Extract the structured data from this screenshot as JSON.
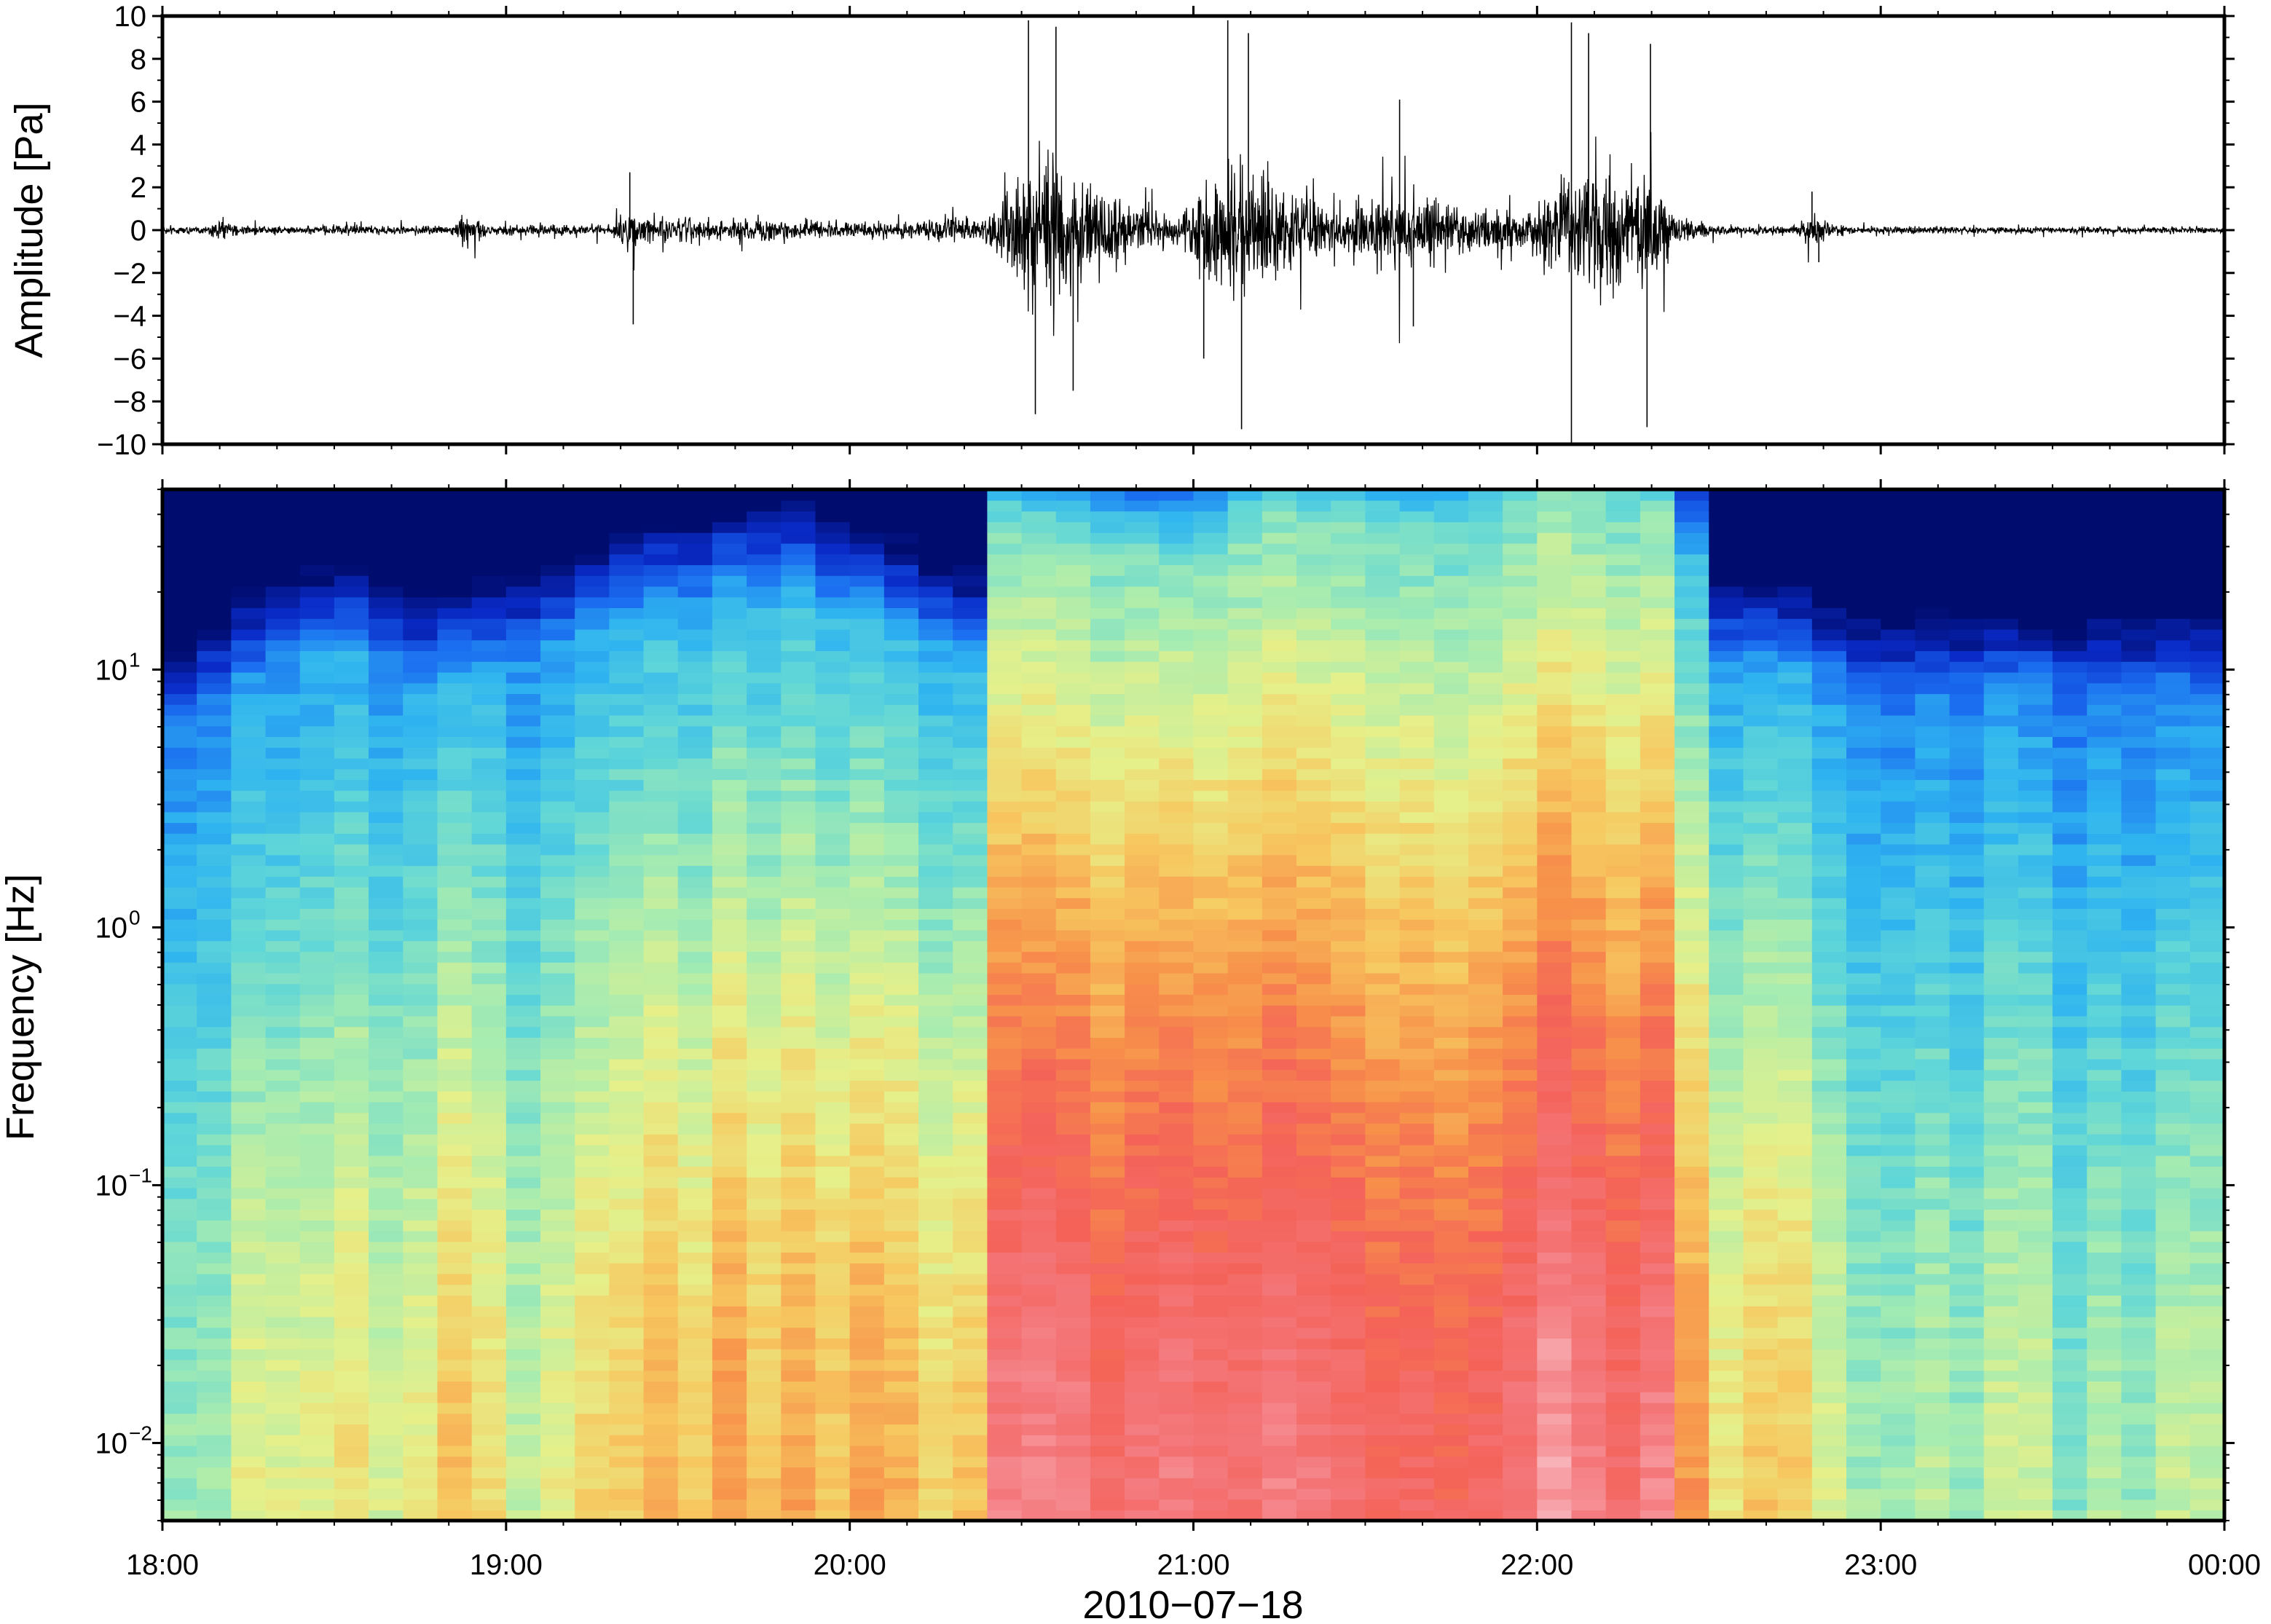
{
  "colors": {
    "trace": "#000000",
    "frame": "#000000",
    "background": "#ffffff",
    "spectrogram_colormap": [
      "#000c6e",
      "#0a2bc8",
      "#1b6ef0",
      "#2fb4f0",
      "#5fd6d8",
      "#a8ecb0",
      "#e6f08a",
      "#f7c860",
      "#f7914a",
      "#f46258",
      "#f4787c",
      "#f8b0b6",
      "#fde2e4"
    ]
  },
  "chart_data": [
    {
      "type": "line",
      "name": "waveform",
      "ylabel": "Amplitude [Pa]",
      "ylim": [
        -10,
        10
      ],
      "yticks": [
        {
          "value": 10,
          "label": "10"
        },
        {
          "value": 8,
          "label": "8"
        },
        {
          "value": 6,
          "label": "6"
        },
        {
          "value": 4,
          "label": "4"
        },
        {
          "value": 2,
          "label": "2"
        },
        {
          "value": 0,
          "label": "0"
        },
        {
          "value": -2,
          "label": "−2"
        },
        {
          "value": -4,
          "label": "−4"
        },
        {
          "value": -6,
          "label": "−6"
        },
        {
          "value": -8,
          "label": "−8"
        },
        {
          "value": -10,
          "label": "−10"
        }
      ],
      "x_start": "18:00",
      "x_end": "00:00",
      "x_unit": "hours",
      "grid": false,
      "envelope": [
        {
          "t": 18.0,
          "amp": 0.25
        },
        {
          "t": 18.12,
          "amp": 0.25
        },
        {
          "t": 18.15,
          "amp": 0.6
        },
        {
          "t": 18.3,
          "amp": 0.25
        },
        {
          "t": 18.5,
          "amp": 0.3
        },
        {
          "t": 18.85,
          "amp": 0.3
        },
        {
          "t": 18.88,
          "amp": 1.2
        },
        {
          "t": 18.95,
          "amp": 0.3
        },
        {
          "t": 19.1,
          "amp": 0.4
        },
        {
          "t": 19.3,
          "amp": 0.3
        },
        {
          "t": 19.35,
          "amp": 1.2
        },
        {
          "t": 19.45,
          "amp": 0.9
        },
        {
          "t": 19.6,
          "amp": 0.6
        },
        {
          "t": 19.8,
          "amp": 0.7
        },
        {
          "t": 20.0,
          "amp": 0.5
        },
        {
          "t": 20.2,
          "amp": 0.6
        },
        {
          "t": 20.3,
          "amp": 1.0
        },
        {
          "t": 20.38,
          "amp": 0.5
        },
        {
          "t": 20.45,
          "amp": 2.5
        },
        {
          "t": 20.52,
          "amp": 5.0
        },
        {
          "t": 20.62,
          "amp": 4.0
        },
        {
          "t": 20.72,
          "amp": 2.5
        },
        {
          "t": 20.95,
          "amp": 1.0
        },
        {
          "t": 21.05,
          "amp": 3.5
        },
        {
          "t": 21.15,
          "amp": 4.5
        },
        {
          "t": 21.3,
          "amp": 2.5
        },
        {
          "t": 21.45,
          "amp": 1.3
        },
        {
          "t": 21.6,
          "amp": 2.8
        },
        {
          "t": 21.75,
          "amp": 1.5
        },
        {
          "t": 21.95,
          "amp": 1.2
        },
        {
          "t": 22.05,
          "amp": 3.0
        },
        {
          "t": 22.2,
          "amp": 5.0
        },
        {
          "t": 22.35,
          "amp": 3.5
        },
        {
          "t": 22.42,
          "amp": 0.8
        },
        {
          "t": 22.55,
          "amp": 0.3
        },
        {
          "t": 22.75,
          "amp": 0.3
        },
        {
          "t": 22.8,
          "amp": 1.0
        },
        {
          "t": 22.9,
          "amp": 0.25
        },
        {
          "t": 24.0,
          "amp": 0.2
        }
      ],
      "peaks": [
        {
          "t": 19.36,
          "value": 2.7
        },
        {
          "t": 19.37,
          "value": -4.4
        },
        {
          "t": 20.52,
          "value": 9.8
        },
        {
          "t": 20.54,
          "value": -8.6
        },
        {
          "t": 20.6,
          "value": 9.5
        },
        {
          "t": 20.65,
          "value": -7.5
        },
        {
          "t": 21.1,
          "value": 9.8
        },
        {
          "t": 21.14,
          "value": -9.3
        },
        {
          "t": 21.16,
          "value": 9.2
        },
        {
          "t": 21.03,
          "value": -6.0
        },
        {
          "t": 21.6,
          "value": 6.1
        },
        {
          "t": 21.64,
          "value": -4.5
        },
        {
          "t": 22.1,
          "value": 9.7
        },
        {
          "t": 22.1,
          "value": -10.0
        },
        {
          "t": 22.15,
          "value": 9.2
        },
        {
          "t": 22.33,
          "value": 8.7
        },
        {
          "t": 22.32,
          "value": -9.2
        },
        {
          "t": 22.8,
          "value": 1.8
        },
        {
          "t": 22.82,
          "value": -1.5
        }
      ]
    },
    {
      "type": "heatmap",
      "name": "spectrogram",
      "ylabel": "Frequency [Hz]",
      "xlabel": "2010−07−18",
      "yscale": "log",
      "ylim": [
        0.005,
        50
      ],
      "yticks": [
        {
          "value": 10,
          "base": "10",
          "exp": "1"
        },
        {
          "value": 1,
          "base": "10",
          "exp": "0"
        },
        {
          "value": 0.1,
          "base": "10",
          "exp": "−1"
        },
        {
          "value": 0.01,
          "base": "10",
          "exp": "−2"
        }
      ],
      "xticks": [
        {
          "hour": 18,
          "label": "18:00"
        },
        {
          "hour": 19,
          "label": "19:00"
        },
        {
          "hour": 20,
          "label": "20:00"
        },
        {
          "hour": 21,
          "label": "21:00"
        },
        {
          "hour": 22,
          "label": "22:00"
        },
        {
          "hour": 23,
          "label": "23:00"
        },
        {
          "hour": 24,
          "label": "00:00"
        }
      ],
      "x_start": "18:00",
      "x_end": "00:00",
      "time_bins": 60,
      "freq_bins": 96,
      "power_scale": "normalized 0-1",
      "column_peak_power": [
        {
          "t": 18.0,
          "level": 0.42
        },
        {
          "t": 18.5,
          "level": 0.5
        },
        {
          "t": 18.85,
          "level": 0.55
        },
        {
          "t": 19.2,
          "level": 0.45
        },
        {
          "t": 19.3,
          "level": 0.62
        },
        {
          "t": 20.35,
          "level": 0.6
        },
        {
          "t": 20.45,
          "level": 0.82
        },
        {
          "t": 20.8,
          "level": 0.78
        },
        {
          "t": 21.15,
          "level": 0.86
        },
        {
          "t": 21.6,
          "level": 0.78
        },
        {
          "t": 22.15,
          "level": 0.86
        },
        {
          "t": 22.4,
          "level": 0.8
        },
        {
          "t": 22.5,
          "level": 0.55
        },
        {
          "t": 22.8,
          "level": 0.58
        },
        {
          "t": 22.9,
          "level": 0.45
        },
        {
          "t": 24.0,
          "level": 0.4
        }
      ],
      "column_freq_reach_hz": [
        {
          "t": 18.0,
          "hz": 6
        },
        {
          "t": 18.5,
          "hz": 12
        },
        {
          "t": 18.8,
          "hz": 8
        },
        {
          "t": 19.3,
          "hz": 14
        },
        {
          "t": 19.8,
          "hz": 18
        },
        {
          "t": 20.35,
          "hz": 10
        },
        {
          "t": 20.45,
          "hz": 35
        },
        {
          "t": 21.0,
          "hz": 25
        },
        {
          "t": 21.2,
          "hz": 40
        },
        {
          "t": 21.7,
          "hz": 35
        },
        {
          "t": 22.1,
          "hz": 45
        },
        {
          "t": 22.4,
          "hz": 40
        },
        {
          "t": 22.5,
          "hz": 10
        },
        {
          "t": 23.0,
          "hz": 8
        },
        {
          "t": 24.0,
          "hz": 8
        }
      ]
    }
  ]
}
